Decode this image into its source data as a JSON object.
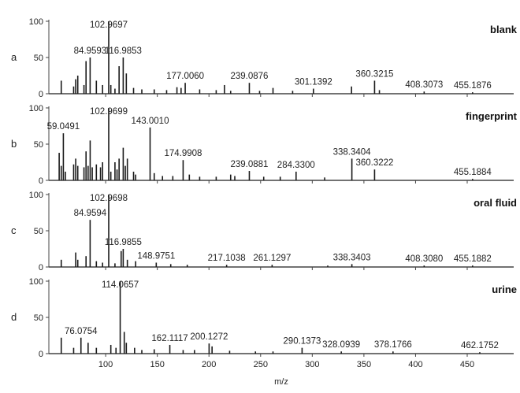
{
  "figure": {
    "xlabel": "m/z",
    "x_ticks": [
      100,
      150,
      200,
      250,
      300,
      350,
      400,
      450
    ],
    "xlim": [
      45,
      495
    ],
    "y_ticks": [
      0,
      50,
      100
    ],
    "ylim": [
      0,
      100
    ],
    "colors": {
      "spectrum": "#1a1a1a",
      "leader": "#6fcf6f",
      "axis": "#444444",
      "text": "#222222"
    }
  },
  "chart_data": [
    {
      "type": "bar",
      "panel_letter": "a",
      "title": "blank",
      "xlabel": "",
      "ylabel": "",
      "xlim": [
        45,
        495
      ],
      "ylim": [
        0,
        100
      ],
      "peaks": [
        {
          "mz": 57,
          "intensity": 18
        },
        {
          "mz": 69,
          "intensity": 10
        },
        {
          "mz": 71,
          "intensity": 20
        },
        {
          "mz": 73,
          "intensity": 25
        },
        {
          "mz": 79,
          "intensity": 12
        },
        {
          "mz": 81,
          "intensity": 45
        },
        {
          "mz": 84.9593,
          "intensity": 50,
          "label": "84.9593"
        },
        {
          "mz": 91,
          "intensity": 18
        },
        {
          "mz": 97,
          "intensity": 12
        },
        {
          "mz": 102.9697,
          "intensity": 100,
          "label": "102.9697"
        },
        {
          "mz": 105,
          "intensity": 12
        },
        {
          "mz": 109,
          "intensity": 7
        },
        {
          "mz": 113,
          "intensity": 38
        },
        {
          "mz": 116.9853,
          "intensity": 50,
          "label": "116.9853"
        },
        {
          "mz": 120,
          "intensity": 28
        },
        {
          "mz": 127,
          "intensity": 8
        },
        {
          "mz": 135,
          "intensity": 6
        },
        {
          "mz": 147,
          "intensity": 6
        },
        {
          "mz": 159,
          "intensity": 5
        },
        {
          "mz": 169,
          "intensity": 9
        },
        {
          "mz": 173,
          "intensity": 8
        },
        {
          "mz": 177.006,
          "intensity": 15,
          "label": "177.0060"
        },
        {
          "mz": 191,
          "intensity": 6
        },
        {
          "mz": 207,
          "intensity": 5
        },
        {
          "mz": 215,
          "intensity": 12
        },
        {
          "mz": 221,
          "intensity": 4
        },
        {
          "mz": 239.0876,
          "intensity": 15,
          "label": "239.0876"
        },
        {
          "mz": 249,
          "intensity": 4
        },
        {
          "mz": 262,
          "intensity": 8
        },
        {
          "mz": 281,
          "intensity": 4
        },
        {
          "mz": 301.1392,
          "intensity": 7,
          "label": "301.1392"
        },
        {
          "mz": 338,
          "intensity": 10
        },
        {
          "mz": 360.3215,
          "intensity": 18,
          "label": "360.3215"
        },
        {
          "mz": 365,
          "intensity": 5
        },
        {
          "mz": 408.3073,
          "intensity": 3,
          "label": "408.3073"
        },
        {
          "mz": 455.1876,
          "intensity": 2,
          "label": "455.1876"
        }
      ]
    },
    {
      "type": "bar",
      "panel_letter": "b",
      "title": "fingerprint",
      "xlabel": "",
      "ylabel": "",
      "xlim": [
        45,
        495
      ],
      "ylim": [
        0,
        100
      ],
      "peaks": [
        {
          "mz": 55,
          "intensity": 38
        },
        {
          "mz": 57,
          "intensity": 20
        },
        {
          "mz": 59.0491,
          "intensity": 65,
          "label": "59.0491"
        },
        {
          "mz": 61,
          "intensity": 12
        },
        {
          "mz": 69,
          "intensity": 22
        },
        {
          "mz": 71,
          "intensity": 30
        },
        {
          "mz": 73,
          "intensity": 20
        },
        {
          "mz": 79,
          "intensity": 18
        },
        {
          "mz": 81,
          "intensity": 40
        },
        {
          "mz": 83,
          "intensity": 20
        },
        {
          "mz": 85,
          "intensity": 55
        },
        {
          "mz": 87,
          "intensity": 18
        },
        {
          "mz": 91,
          "intensity": 22
        },
        {
          "mz": 95,
          "intensity": 18
        },
        {
          "mz": 97,
          "intensity": 25
        },
        {
          "mz": 102.9699,
          "intensity": 100,
          "label": "102.9699"
        },
        {
          "mz": 105,
          "intensity": 12
        },
        {
          "mz": 109,
          "intensity": 25
        },
        {
          "mz": 111,
          "intensity": 15
        },
        {
          "mz": 113,
          "intensity": 30
        },
        {
          "mz": 117,
          "intensity": 45
        },
        {
          "mz": 119,
          "intensity": 20
        },
        {
          "mz": 121,
          "intensity": 30
        },
        {
          "mz": 127,
          "intensity": 12
        },
        {
          "mz": 129,
          "intensity": 8
        },
        {
          "mz": 143.001,
          "intensity": 73,
          "label": "143.0010"
        },
        {
          "mz": 147,
          "intensity": 10
        },
        {
          "mz": 155,
          "intensity": 6
        },
        {
          "mz": 165,
          "intensity": 6
        },
        {
          "mz": 174.9908,
          "intensity": 28,
          "label": "174.9908"
        },
        {
          "mz": 181,
          "intensity": 8
        },
        {
          "mz": 191,
          "intensity": 5
        },
        {
          "mz": 207,
          "intensity": 5
        },
        {
          "mz": 221,
          "intensity": 8
        },
        {
          "mz": 225,
          "intensity": 6
        },
        {
          "mz": 239.0881,
          "intensity": 13,
          "label": "239.0881"
        },
        {
          "mz": 253,
          "intensity": 5
        },
        {
          "mz": 269,
          "intensity": 5
        },
        {
          "mz": 284.33,
          "intensity": 12,
          "label": "284.3300"
        },
        {
          "mz": 312,
          "intensity": 4
        },
        {
          "mz": 338.3404,
          "intensity": 30,
          "label": "338.3404"
        },
        {
          "mz": 360.3222,
          "intensity": 15,
          "label": "360.3222"
        },
        {
          "mz": 455.1884,
          "intensity": 2,
          "label": "455.1884"
        }
      ]
    },
    {
      "type": "bar",
      "panel_letter": "c",
      "title": "oral fluid",
      "xlabel": "",
      "ylabel": "",
      "xlim": [
        45,
        495
      ],
      "ylim": [
        0,
        100
      ],
      "peaks": [
        {
          "mz": 57,
          "intensity": 10
        },
        {
          "mz": 71,
          "intensity": 20
        },
        {
          "mz": 73,
          "intensity": 10
        },
        {
          "mz": 81,
          "intensity": 15
        },
        {
          "mz": 84.9594,
          "intensity": 65,
          "label": "84.9594"
        },
        {
          "mz": 91,
          "intensity": 8
        },
        {
          "mz": 97,
          "intensity": 6
        },
        {
          "mz": 102.9698,
          "intensity": 100,
          "label": "102.9698"
        },
        {
          "mz": 109,
          "intensity": 5
        },
        {
          "mz": 115,
          "intensity": 22
        },
        {
          "mz": 116.9855,
          "intensity": 25,
          "label": "116.9855"
        },
        {
          "mz": 121,
          "intensity": 10
        },
        {
          "mz": 129,
          "intensity": 8
        },
        {
          "mz": 148.9751,
          "intensity": 6,
          "label": "148.9751"
        },
        {
          "mz": 163,
          "intensity": 4
        },
        {
          "mz": 179,
          "intensity": 3
        },
        {
          "mz": 217.1038,
          "intensity": 3,
          "label": "217.1038"
        },
        {
          "mz": 261.1297,
          "intensity": 3,
          "label": "261.1297"
        },
        {
          "mz": 315,
          "intensity": 2
        },
        {
          "mz": 338.3403,
          "intensity": 4,
          "label": "338.3403"
        },
        {
          "mz": 408.308,
          "intensity": 2,
          "label": "408.3080"
        },
        {
          "mz": 455.1882,
          "intensity": 2,
          "label": "455.1882"
        }
      ]
    },
    {
      "type": "bar",
      "panel_letter": "d",
      "title": "urine",
      "xlabel": "m/z",
      "ylabel": "",
      "xlim": [
        45,
        495
      ],
      "ylim": [
        0,
        100
      ],
      "peaks": [
        {
          "mz": 57,
          "intensity": 22
        },
        {
          "mz": 69,
          "intensity": 8
        },
        {
          "mz": 76.0754,
          "intensity": 22,
          "label": "76.0754"
        },
        {
          "mz": 83,
          "intensity": 15
        },
        {
          "mz": 91,
          "intensity": 8
        },
        {
          "mz": 105,
          "intensity": 12
        },
        {
          "mz": 110,
          "intensity": 8
        },
        {
          "mz": 114.0657,
          "intensity": 100,
          "label": "114.0657"
        },
        {
          "mz": 118,
          "intensity": 30
        },
        {
          "mz": 120,
          "intensity": 15
        },
        {
          "mz": 128,
          "intensity": 8
        },
        {
          "mz": 135,
          "intensity": 5
        },
        {
          "mz": 147,
          "intensity": 6
        },
        {
          "mz": 162.1117,
          "intensity": 12,
          "label": "162.1117"
        },
        {
          "mz": 175,
          "intensity": 5
        },
        {
          "mz": 186,
          "intensity": 5
        },
        {
          "mz": 200.1272,
          "intensity": 14,
          "label": "200.1272"
        },
        {
          "mz": 203,
          "intensity": 10
        },
        {
          "mz": 220,
          "intensity": 4
        },
        {
          "mz": 245,
          "intensity": 3
        },
        {
          "mz": 262,
          "intensity": 3
        },
        {
          "mz": 290.1373,
          "intensity": 8,
          "label": "290.1373"
        },
        {
          "mz": 328.0939,
          "intensity": 3,
          "label": "328.0939"
        },
        {
          "mz": 378.1766,
          "intensity": 3,
          "label": "378.1766"
        },
        {
          "mz": 462.1752,
          "intensity": 2,
          "label": "462.1752"
        }
      ]
    }
  ]
}
